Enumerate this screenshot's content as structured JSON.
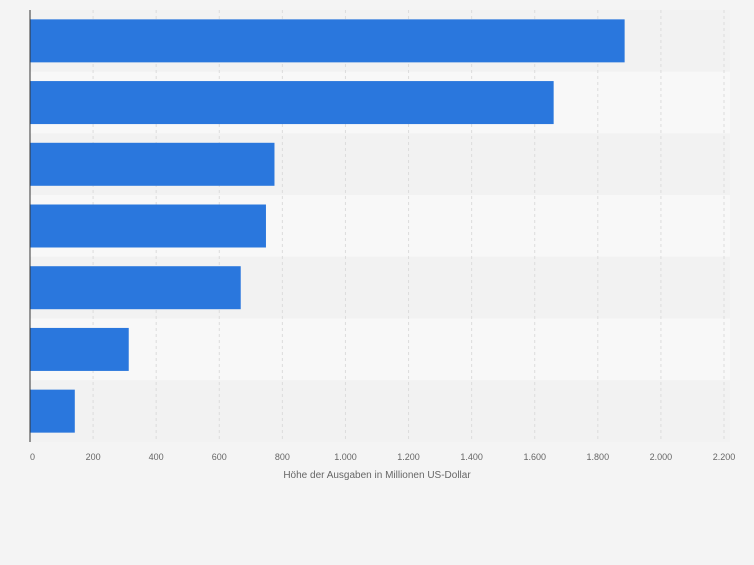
{
  "chart_data": {
    "type": "bar",
    "orientation": "horizontal",
    "categories": [
      "",
      "",
      "",
      "",
      "",
      "",
      ""
    ],
    "values": [
      1885,
      1660,
      775,
      748,
      668,
      313,
      142
    ],
    "title": "",
    "xlabel": "Höhe der Ausgaben in Millionen US-Dollar",
    "ylabel": "",
    "xlim": [
      0,
      2200
    ],
    "xticks": [
      0,
      200,
      400,
      600,
      800,
      1000,
      1200,
      1400,
      1600,
      1800,
      2000,
      2200
    ],
    "xtick_labels": [
      "0",
      "200",
      "400",
      "600",
      "800",
      "1.000",
      "1.200",
      "1.400",
      "1.600",
      "1.800",
      "2.000",
      "2.200"
    ],
    "grid": "vertical dashed",
    "legend": "none",
    "colors": {
      "bar": "#2a77dd",
      "row_band_dark": "#f2f2f2",
      "row_band_light": "#f8f8f8",
      "grid": "#dcdcdc",
      "axis": "#333333",
      "tick_text": "#666666",
      "background": "#f4f4f4"
    }
  }
}
